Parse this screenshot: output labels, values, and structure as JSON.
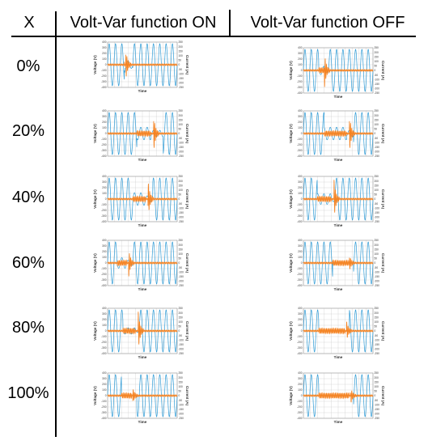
{
  "table": {
    "header": {
      "x": "X",
      "on": "Volt-Var function ON",
      "off": "Volt-Var function OFF"
    },
    "rows": [
      {
        "x": "0%"
      },
      {
        "x": "20%"
      },
      {
        "x": "40%"
      },
      {
        "x": "60%"
      },
      {
        "x": "80%"
      },
      {
        "x": "100%"
      }
    ]
  },
  "plot_text": {
    "y_left": "Voltage (V)",
    "y_right": "Current (A)",
    "x": "Time",
    "left_ticks": [
      "400",
      "300",
      "200",
      "100",
      "0",
      "-100",
      "-200",
      "-300",
      "-400"
    ],
    "right_ticks": [
      "250",
      "200",
      "150",
      "100",
      "50",
      "0",
      "-50",
      "-100",
      "-150",
      "-200",
      "-250"
    ]
  },
  "colors": {
    "voltage": "#2e9bd6",
    "current": "#f58220",
    "grid": "#cfcfcf",
    "frame": "#9a9a9a",
    "rules": "#000000"
  }
}
